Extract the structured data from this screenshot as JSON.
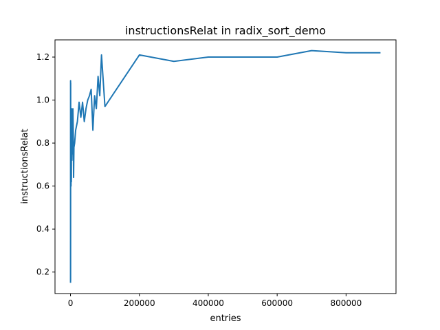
{
  "chart_data": {
    "type": "line",
    "title": "instructionsRelat in radix_sort_demo",
    "xlabel": "entries",
    "ylabel": "instructionsRelat",
    "xlim": [
      -45000,
      945000
    ],
    "ylim": [
      0.1,
      1.28
    ],
    "xticks": [
      0,
      200000,
      400000,
      600000,
      800000
    ],
    "xtick_labels": [
      "0",
      "200000",
      "400000",
      "600000",
      "800000"
    ],
    "yticks": [
      0.2,
      0.4,
      0.6,
      0.8,
      1.0,
      1.2
    ],
    "ytick_labels": [
      "0.2",
      "0.4",
      "0.6",
      "0.8",
      "1.0",
      "1.2"
    ],
    "grid": false,
    "line_color": "#1f77b4",
    "series": [
      {
        "name": "instructionsRelat",
        "x": [
          100,
          200,
          300,
          500,
          700,
          1000,
          1500,
          2000,
          2500,
          3000,
          4000,
          5000,
          6000,
          7000,
          8000,
          9000,
          10000,
          12000,
          15000,
          20000,
          25000,
          30000,
          35000,
          40000,
          45000,
          50000,
          55000,
          60000,
          65000,
          70000,
          75000,
          80000,
          85000,
          90000,
          100000,
          200000,
          300000,
          400000,
          500000,
          600000,
          700000,
          800000,
          900000
        ],
        "y": [
          0.15,
          1.09,
          0.16,
          1.08,
          0.61,
          0.95,
          0.6,
          0.89,
          0.62,
          0.96,
          0.72,
          0.83,
          0.75,
          0.96,
          0.85,
          0.64,
          0.78,
          0.8,
          0.86,
          0.9,
          0.99,
          0.92,
          0.99,
          0.9,
          0.96,
          1.0,
          1.02,
          1.05,
          0.86,
          1.02,
          0.96,
          1.11,
          1.02,
          1.21,
          0.97,
          1.21,
          1.18,
          1.2,
          1.2,
          1.2,
          1.23,
          1.22,
          1.22
        ]
      }
    ]
  }
}
